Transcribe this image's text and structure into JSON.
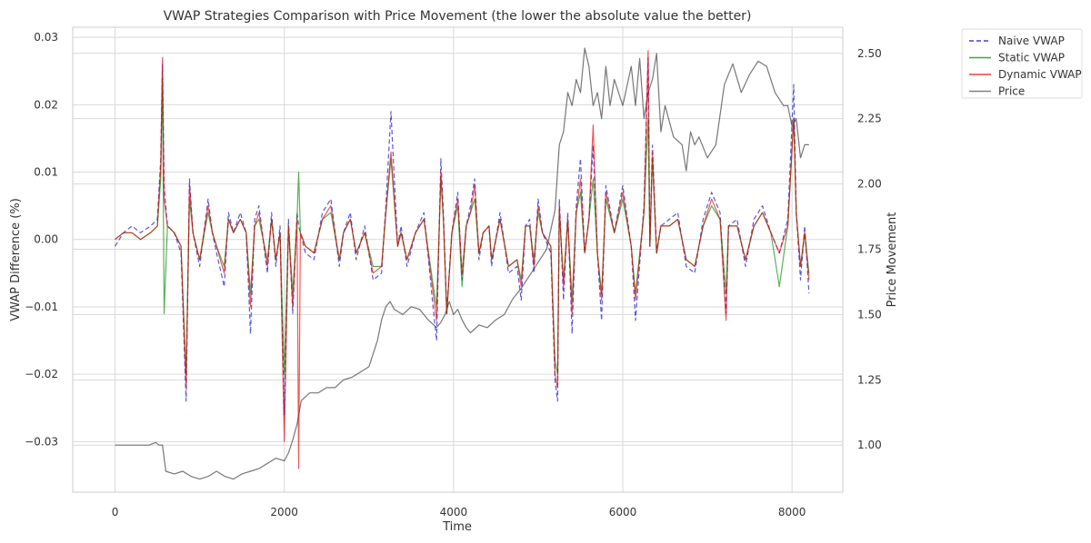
{
  "chart_data": {
    "type": "line",
    "title": "VWAP Strategies Comparison with Price Movement (the lower the absolute value the better)",
    "xlabel": "Time",
    "ylabel": "VWAP Difference (%)",
    "y2label": "Price Movement",
    "xlim": [
      -500,
      8600
    ],
    "ylim": [
      -0.0375,
      0.0315
    ],
    "y2lim": [
      0.82,
      2.6
    ],
    "xticks": [
      0,
      2000,
      4000,
      6000,
      8000
    ],
    "xtick_labels": [
      "0",
      "2000",
      "4000",
      "6000",
      "8000"
    ],
    "yticks": [
      0.03,
      0.02,
      0.01,
      0.0,
      -0.01,
      -0.02,
      -0.03
    ],
    "ytick_labels": [
      "0.03",
      "0.02",
      "0.01",
      "0.00",
      "−0.01",
      "−0.02",
      "−0.03"
    ],
    "y2ticks": [
      2.5,
      2.25,
      2.0,
      1.75,
      1.5,
      1.25,
      1.0
    ],
    "y2tick_labels": [
      "2.50",
      "2.25",
      "2.00",
      "1.75",
      "1.50",
      "1.25",
      "1.00"
    ],
    "grid": true,
    "legend_position": "outside-top-right",
    "series": [
      {
        "name": "Naive VWAP",
        "color": "#0000cc",
        "dash": true,
        "axis": "left",
        "x": [
          0,
          100,
          200,
          300,
          420,
          500,
          540,
          560,
          580,
          620,
          700,
          780,
          840,
          880,
          920,
          1000,
          1100,
          1150,
          1200,
          1290,
          1340,
          1400,
          1480,
          1550,
          1600,
          1650,
          1700,
          1800,
          1850,
          1900,
          1950,
          2000,
          2050,
          2100,
          2150,
          2170,
          2190,
          2250,
          2350,
          2450,
          2550,
          2650,
          2700,
          2780,
          2850,
          2950,
          3050,
          3150,
          3200,
          3260,
          3340,
          3380,
          3450,
          3550,
          3650,
          3750,
          3800,
          3850,
          3880,
          3920,
          3980,
          4050,
          4100,
          4150,
          4200,
          4250,
          4300,
          4350,
          4420,
          4450,
          4550,
          4650,
          4750,
          4800,
          4850,
          4900,
          4950,
          5000,
          5050,
          5150,
          5200,
          5230,
          5250,
          5300,
          5350,
          5400,
          5450,
          5500,
          5550,
          5600,
          5650,
          5700,
          5750,
          5800,
          5900,
          6000,
          6100,
          6150,
          6250,
          6300,
          6320,
          6350,
          6400,
          6450,
          6550,
          6650,
          6750,
          6850,
          6950,
          7050,
          7150,
          7220,
          7250,
          7350,
          7450,
          7550,
          7650,
          7750,
          7850,
          7950,
          8020,
          8050,
          8100,
          8150,
          8200
        ],
        "values": [
          -0.001,
          0.001,
          0.002,
          0.001,
          0.002,
          0.003,
          0.012,
          0.026,
          0.008,
          0.002,
          0.001,
          -0.002,
          -0.024,
          0.009,
          0.001,
          -0.004,
          0.006,
          0.001,
          -0.002,
          -0.007,
          0.004,
          0.001,
          0.004,
          0.001,
          -0.014,
          0.003,
          0.005,
          -0.005,
          0.004,
          -0.004,
          0.002,
          -0.026,
          0.003,
          -0.011,
          0.004,
          0.002,
          0.001,
          -0.002,
          -0.003,
          0.004,
          0.006,
          -0.004,
          0.001,
          0.004,
          -0.003,
          0.002,
          -0.006,
          -0.005,
          0.005,
          0.019,
          -0.001,
          0.002,
          -0.004,
          0.001,
          0.004,
          -0.009,
          -0.015,
          0.012,
          0.004,
          -0.011,
          0.001,
          0.007,
          -0.006,
          0.002,
          0.005,
          0.009,
          -0.003,
          0.001,
          0.002,
          -0.004,
          0.004,
          -0.005,
          -0.004,
          -0.009,
          0.002,
          0.003,
          -0.005,
          0.006,
          0.001,
          -0.002,
          -0.021,
          -0.024,
          0.006,
          -0.009,
          0.004,
          -0.014,
          0.005,
          0.012,
          -0.002,
          0.003,
          0.014,
          -0.002,
          -0.012,
          0.008,
          0.001,
          0.008,
          -0.001,
          -0.012,
          0.005,
          0.027,
          -0.001,
          0.014,
          -0.002,
          0.002,
          0.003,
          0.004,
          -0.004,
          -0.005,
          0.003,
          0.007,
          0.004,
          -0.011,
          0.002,
          0.003,
          -0.004,
          0.003,
          0.005,
          0.001,
          -0.002,
          0.003,
          0.023,
          0.004,
          -0.006,
          0.002,
          -0.008
        ]
      },
      {
        "name": "Static VWAP",
        "color": "#008800",
        "dash": false,
        "axis": "left",
        "x": [
          0,
          100,
          200,
          300,
          420,
          500,
          540,
          560,
          580,
          620,
          700,
          780,
          840,
          880,
          920,
          1000,
          1100,
          1150,
          1200,
          1290,
          1340,
          1400,
          1480,
          1550,
          1600,
          1650,
          1700,
          1800,
          1850,
          1900,
          1950,
          2000,
          2050,
          2100,
          2150,
          2170,
          2190,
          2250,
          2350,
          2450,
          2550,
          2650,
          2700,
          2780,
          2850,
          2950,
          3050,
          3150,
          3200,
          3260,
          3340,
          3380,
          3450,
          3550,
          3650,
          3750,
          3800,
          3850,
          3880,
          3920,
          3980,
          4050,
          4100,
          4150,
          4200,
          4250,
          4300,
          4350,
          4420,
          4450,
          4550,
          4650,
          4750,
          4800,
          4850,
          4900,
          4950,
          5000,
          5050,
          5150,
          5200,
          5230,
          5250,
          5300,
          5350,
          5400,
          5450,
          5500,
          5550,
          5600,
          5650,
          5700,
          5750,
          5800,
          5900,
          6000,
          6100,
          6150,
          6250,
          6300,
          6320,
          6350,
          6400,
          6450,
          6550,
          6650,
          6750,
          6850,
          6950,
          7050,
          7150,
          7220,
          7250,
          7350,
          7450,
          7550,
          7650,
          7750,
          7850,
          7950,
          8020,
          8050,
          8100,
          8150,
          8200
        ],
        "values": [
          0.0,
          0.001,
          0.001,
          0.0,
          0.001,
          0.002,
          0.009,
          0.024,
          -0.011,
          0.002,
          0.001,
          -0.001,
          -0.02,
          0.006,
          0.001,
          -0.003,
          0.004,
          0.001,
          -0.001,
          -0.004,
          0.003,
          0.001,
          0.003,
          0.001,
          -0.008,
          0.002,
          0.003,
          -0.003,
          0.003,
          -0.003,
          0.001,
          -0.02,
          0.002,
          -0.008,
          0.003,
          0.01,
          0.001,
          -0.001,
          -0.002,
          0.003,
          0.004,
          -0.003,
          0.001,
          0.003,
          -0.002,
          0.001,
          -0.004,
          -0.004,
          0.004,
          0.012,
          -0.001,
          0.001,
          -0.003,
          0.001,
          0.003,
          -0.006,
          -0.01,
          0.009,
          0.003,
          -0.011,
          0.001,
          0.005,
          -0.007,
          0.002,
          0.004,
          0.006,
          -0.002,
          0.001,
          0.002,
          -0.003,
          0.003,
          -0.004,
          -0.003,
          -0.006,
          0.002,
          0.002,
          -0.003,
          0.004,
          0.001,
          -0.001,
          -0.018,
          -0.02,
          0.004,
          -0.006,
          0.003,
          -0.009,
          0.004,
          0.007,
          -0.002,
          0.003,
          0.009,
          -0.002,
          -0.008,
          0.006,
          0.001,
          0.006,
          -0.001,
          -0.008,
          0.004,
          0.018,
          -0.001,
          0.012,
          -0.002,
          0.002,
          0.002,
          0.003,
          -0.003,
          -0.004,
          0.002,
          0.005,
          0.003,
          -0.008,
          0.002,
          0.002,
          -0.003,
          0.002,
          0.004,
          0.001,
          -0.007,
          0.002,
          0.018,
          0.004,
          -0.004,
          0.001,
          -0.005
        ]
      },
      {
        "name": "Dynamic VWAP",
        "color": "#e60000",
        "dash": false,
        "axis": "left",
        "x": [
          0,
          100,
          200,
          300,
          420,
          500,
          540,
          560,
          580,
          620,
          700,
          780,
          840,
          880,
          920,
          1000,
          1100,
          1150,
          1200,
          1290,
          1340,
          1400,
          1480,
          1550,
          1600,
          1650,
          1700,
          1800,
          1850,
          1900,
          1950,
          2000,
          2050,
          2100,
          2150,
          2170,
          2190,
          2250,
          2350,
          2450,
          2550,
          2650,
          2700,
          2780,
          2850,
          2950,
          3050,
          3150,
          3200,
          3260,
          3340,
          3380,
          3450,
          3550,
          3650,
          3750,
          3800,
          3850,
          3880,
          3920,
          3980,
          4050,
          4100,
          4150,
          4200,
          4250,
          4300,
          4350,
          4420,
          4450,
          4550,
          4650,
          4750,
          4800,
          4850,
          4900,
          4950,
          5000,
          5050,
          5150,
          5200,
          5230,
          5250,
          5300,
          5350,
          5400,
          5450,
          5500,
          5550,
          5600,
          5650,
          5700,
          5750,
          5800,
          5900,
          6000,
          6100,
          6150,
          6250,
          6300,
          6320,
          6350,
          6400,
          6450,
          6550,
          6650,
          6750,
          6850,
          6950,
          7050,
          7150,
          7220,
          7250,
          7350,
          7450,
          7550,
          7650,
          7750,
          7850,
          7950,
          8020,
          8050,
          8100,
          8150,
          8200
        ],
        "values": [
          0.0,
          0.001,
          0.001,
          0.0,
          0.001,
          0.002,
          0.011,
          0.027,
          0.006,
          0.002,
          0.001,
          -0.001,
          -0.022,
          0.008,
          0.001,
          -0.003,
          0.005,
          0.001,
          -0.001,
          -0.005,
          0.003,
          0.001,
          0.003,
          0.001,
          -0.01,
          0.002,
          0.004,
          -0.004,
          0.003,
          -0.003,
          0.001,
          -0.03,
          0.002,
          -0.01,
          0.003,
          -0.034,
          0.001,
          -0.001,
          -0.002,
          0.003,
          0.005,
          -0.003,
          0.001,
          0.003,
          -0.002,
          0.001,
          -0.005,
          -0.004,
          0.004,
          0.013,
          -0.001,
          0.001,
          -0.003,
          0.001,
          0.003,
          -0.007,
          -0.012,
          0.01,
          0.003,
          -0.011,
          0.001,
          0.006,
          -0.005,
          0.002,
          0.004,
          0.008,
          -0.002,
          0.001,
          0.002,
          -0.003,
          0.003,
          -0.004,
          -0.003,
          -0.007,
          0.002,
          0.002,
          -0.004,
          0.005,
          0.001,
          -0.001,
          -0.02,
          -0.022,
          0.005,
          -0.007,
          0.003,
          -0.011,
          0.004,
          0.009,
          -0.002,
          0.003,
          0.017,
          -0.002,
          -0.009,
          0.007,
          0.001,
          0.007,
          -0.001,
          -0.009,
          0.004,
          0.028,
          -0.001,
          0.013,
          -0.002,
          0.002,
          0.002,
          0.003,
          -0.003,
          -0.004,
          0.002,
          0.006,
          0.003,
          -0.012,
          0.002,
          0.002,
          -0.003,
          0.002,
          0.004,
          0.001,
          -0.002,
          0.002,
          0.018,
          0.004,
          -0.004,
          0.001,
          -0.006
        ]
      },
      {
        "name": "Price",
        "color": "#555555",
        "dash": false,
        "axis": "right",
        "x": [
          0,
          150,
          300,
          400,
          480,
          520,
          560,
          600,
          700,
          800,
          900,
          1000,
          1100,
          1200,
          1300,
          1400,
          1500,
          1600,
          1700,
          1800,
          1900,
          2000,
          2050,
          2100,
          2150,
          2200,
          2300,
          2400,
          2500,
          2600,
          2700,
          2800,
          2900,
          3000,
          3100,
          3150,
          3200,
          3250,
          3300,
          3400,
          3500,
          3600,
          3700,
          3800,
          3850,
          3900,
          3950,
          4000,
          4050,
          4100,
          4150,
          4200,
          4300,
          4400,
          4500,
          4600,
          4700,
          4800,
          4900,
          5000,
          5100,
          5200,
          5250,
          5300,
          5350,
          5400,
          5450,
          5500,
          5550,
          5600,
          5650,
          5700,
          5750,
          5800,
          5850,
          5900,
          6000,
          6100,
          6150,
          6200,
          6250,
          6300,
          6350,
          6400,
          6450,
          6500,
          6600,
          6700,
          6750,
          6800,
          6850,
          6900,
          7000,
          7100,
          7200,
          7300,
          7400,
          7500,
          7600,
          7700,
          7800,
          7900,
          7950,
          8000,
          8050,
          8100,
          8150,
          8200
        ],
        "values": [
          1.0,
          1.0,
          1.0,
          1.0,
          1.01,
          1.0,
          1.0,
          0.9,
          0.89,
          0.9,
          0.88,
          0.87,
          0.88,
          0.9,
          0.88,
          0.87,
          0.89,
          0.9,
          0.91,
          0.93,
          0.95,
          0.94,
          0.97,
          1.02,
          1.08,
          1.17,
          1.2,
          1.2,
          1.22,
          1.22,
          1.25,
          1.26,
          1.28,
          1.3,
          1.4,
          1.48,
          1.53,
          1.55,
          1.52,
          1.5,
          1.53,
          1.52,
          1.48,
          1.45,
          1.47,
          1.5,
          1.55,
          1.5,
          1.52,
          1.48,
          1.45,
          1.43,
          1.46,
          1.45,
          1.48,
          1.5,
          1.56,
          1.6,
          1.65,
          1.7,
          1.75,
          1.9,
          2.15,
          2.2,
          2.35,
          2.3,
          2.4,
          2.35,
          2.52,
          2.45,
          2.3,
          2.35,
          2.25,
          2.45,
          2.3,
          2.4,
          2.3,
          2.45,
          2.3,
          2.48,
          2.25,
          2.35,
          2.4,
          2.5,
          2.2,
          2.3,
          2.18,
          2.15,
          2.05,
          2.2,
          2.15,
          2.18,
          2.1,
          2.15,
          2.38,
          2.46,
          2.35,
          2.42,
          2.47,
          2.45,
          2.35,
          2.3,
          2.3,
          2.22,
          2.25,
          2.1,
          2.15,
          2.15
        ]
      }
    ]
  }
}
